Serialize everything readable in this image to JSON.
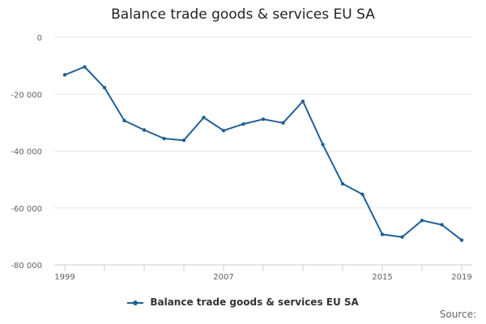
{
  "chart_data": {
    "type": "line",
    "title": "Balance trade goods & services EU SA",
    "xlabel": "",
    "ylabel": "",
    "x": [
      1999,
      2000,
      2001,
      2002,
      2003,
      2004,
      2005,
      2006,
      2007,
      2008,
      2009,
      2010,
      2011,
      2012,
      2013,
      2014,
      2015,
      2016,
      2017,
      2018,
      2019
    ],
    "series": [
      {
        "name": "Balance trade goods & services EU SA",
        "color": "#206095",
        "values": [
          -13200,
          -10400,
          -17700,
          -29300,
          -32600,
          -35600,
          -36200,
          -28200,
          -32800,
          -30500,
          -28800,
          -30100,
          -22500,
          -37700,
          -51500,
          -55200,
          -69300,
          -70200,
          -64400,
          -65900,
          -71300
        ]
      }
    ],
    "ylim": [
      -80000,
      0
    ],
    "y_ticks": [
      0,
      -20000,
      -40000,
      -60000,
      -80000
    ],
    "y_tick_labels": [
      "0",
      "-20 000",
      "-40 000",
      "-60 000",
      "-80 000"
    ],
    "x_tick_labels": [
      "1999",
      "2007",
      "2015",
      "2019"
    ],
    "grid": true,
    "legend": "bottom",
    "source_label": "Source:"
  }
}
